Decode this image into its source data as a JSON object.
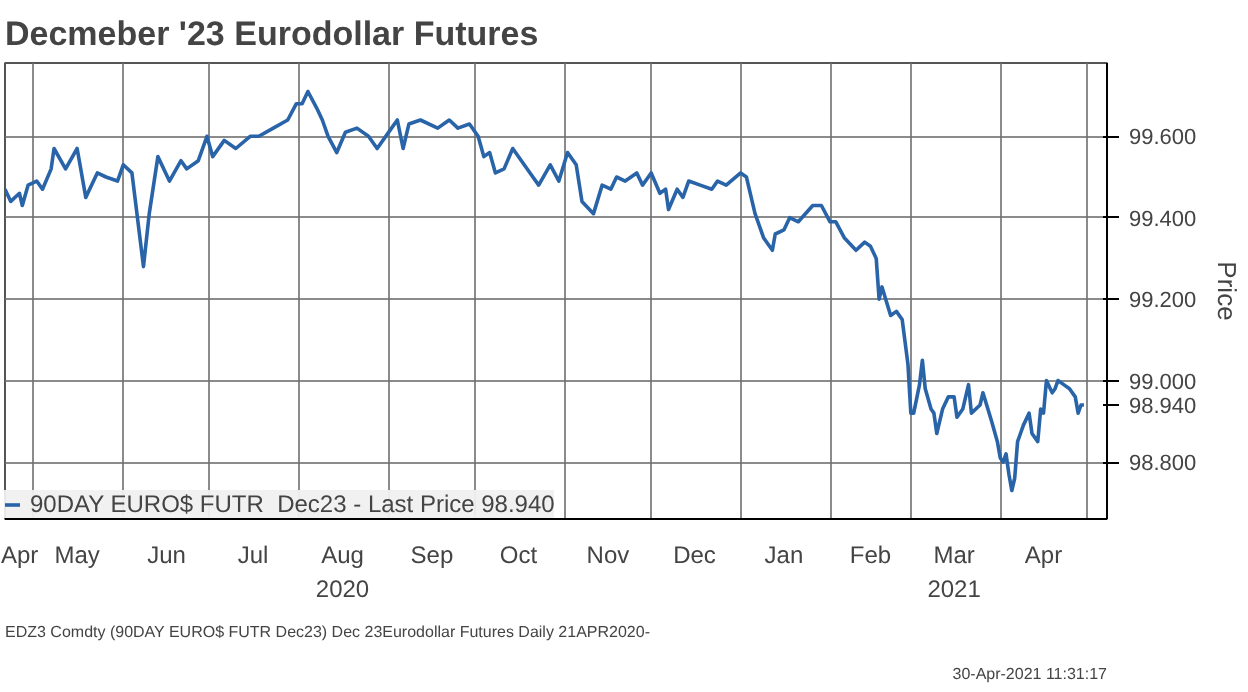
{
  "chart_data": {
    "type": "line",
    "title": "Decmeber '23 Eurodollar Futures",
    "ylabel": "Price",
    "annotations": [
      "EDZ3 Comdty (90DAY EURO$ FUTR  Dec23) Dec 23Eurodollar Futures  Daily 21APR2020-",
      "30-Apr-2021 11:31:17"
    ],
    "xlim": [
      "2020-04-21",
      "2021-05-08"
    ],
    "ylim": [
      98.66,
      99.78
    ],
    "xticks": [
      {
        "value": "2020-04-26",
        "label": "Apr"
      },
      {
        "value": "2020-05-01",
        "label": null
      },
      {
        "value": "2020-05-16",
        "label": "May"
      },
      {
        "value": "2020-06-01",
        "label": null
      },
      {
        "value": "2020-06-16",
        "label": "Jun"
      },
      {
        "value": "2020-07-01",
        "label": null
      },
      {
        "value": "2020-07-16",
        "label": "Jul"
      },
      {
        "value": "2020-08-01",
        "label": null
      },
      {
        "value": "2020-08-16",
        "label": "Aug\n2020"
      },
      {
        "value": "2020-09-01",
        "label": null
      },
      {
        "value": "2020-09-16",
        "label": "Sep"
      },
      {
        "value": "2020-10-01",
        "label": null
      },
      {
        "value": "2020-10-16",
        "label": "Oct"
      },
      {
        "value": "2020-11-01",
        "label": null
      },
      {
        "value": "2020-11-16",
        "label": "Nov"
      },
      {
        "value": "2020-12-01",
        "label": null
      },
      {
        "value": "2020-12-16",
        "label": "Dec"
      },
      {
        "value": "2021-01-01",
        "label": null
      },
      {
        "value": "2021-01-16",
        "label": "Jan"
      },
      {
        "value": "2021-02-01",
        "label": null
      },
      {
        "value": "2021-02-15",
        "label": "Feb"
      },
      {
        "value": "2021-03-01",
        "label": null
      },
      {
        "value": "2021-03-16",
        "label": "Mar\n2021"
      },
      {
        "value": "2021-04-01",
        "label": null
      },
      {
        "value": "2021-04-16",
        "label": "Apr"
      },
      {
        "value": "2021-05-01",
        "label": null
      }
    ],
    "yticks": [
      {
        "value": 98.8,
        "label": "98.800"
      },
      {
        "value": 98.94,
        "label": "98.940"
      },
      {
        "value": 99.0,
        "label": "99.000"
      },
      {
        "value": 99.2,
        "label": "99.200"
      },
      {
        "value": 99.4,
        "label": "99.400"
      },
      {
        "value": 99.6,
        "label": "99.600"
      }
    ],
    "grid": true,
    "legend": "bottom left",
    "marker": "none",
    "line_style": "solid",
    "x": [
      "2020-04-21",
      "2020-04-23",
      "2020-04-26",
      "2020-04-27",
      "2020-04-29",
      "2020-05-02",
      "2020-05-04",
      "2020-05-07",
      "2020-05-08",
      "2020-05-12",
      "2020-05-16",
      "2020-05-19",
      "2020-05-23",
      "2020-05-26",
      "2020-05-30",
      "2020-06-01",
      "2020-06-04",
      "2020-06-08",
      "2020-06-10",
      "2020-06-13",
      "2020-06-17",
      "2020-06-21",
      "2020-06-23",
      "2020-06-27",
      "2020-06-30",
      "2020-07-02",
      "2020-07-06",
      "2020-07-10",
      "2020-07-15",
      "2020-07-18",
      "2020-07-23",
      "2020-07-28",
      "2020-07-31",
      "2020-08-02",
      "2020-08-04",
      "2020-08-07",
      "2020-08-09",
      "2020-08-11",
      "2020-08-14",
      "2020-08-17",
      "2020-08-21",
      "2020-08-25",
      "2020-08-28",
      "2020-09-02",
      "2020-09-04",
      "2020-09-06",
      "2020-09-08",
      "2020-09-12",
      "2020-09-18",
      "2020-09-22",
      "2020-09-25",
      "2020-09-29",
      "2020-10-02",
      "2020-10-04",
      "2020-10-06",
      "2020-10-08",
      "2020-10-11",
      "2020-10-14",
      "2020-10-17",
      "2020-10-20",
      "2020-10-23",
      "2020-10-27",
      "2020-10-30",
      "2020-11-02",
      "2020-11-05",
      "2020-11-07",
      "2020-11-11",
      "2020-11-14",
      "2020-11-17",
      "2020-11-19",
      "2020-11-22",
      "2020-11-26",
      "2020-11-28",
      "2020-12-01",
      "2020-12-04",
      "2020-12-06",
      "2020-12-07",
      "2020-12-10",
      "2020-12-12",
      "2020-12-14",
      "2020-12-18",
      "2020-12-22",
      "2020-12-24",
      "2020-12-27",
      "2021-01-01",
      "2021-01-03",
      "2021-01-06",
      "2021-01-09",
      "2021-01-12",
      "2021-01-13",
      "2021-01-16",
      "2021-01-18",
      "2021-01-21",
      "2021-01-26",
      "2021-01-29",
      "2021-02-01",
      "2021-02-03",
      "2021-02-06",
      "2021-02-10",
      "2021-02-13",
      "2021-02-15",
      "2021-02-17",
      "2021-02-18",
      "2021-02-19",
      "2021-02-22",
      "2021-02-24",
      "2021-02-26",
      "2021-02-28",
      "2021-03-01",
      "2021-03-02",
      "2021-03-04",
      "2021-03-05",
      "2021-03-06",
      "2021-03-08",
      "2021-03-09",
      "2021-03-10",
      "2021-03-12",
      "2021-03-14",
      "2021-03-16",
      "2021-03-17",
      "2021-03-19",
      "2021-03-21",
      "2021-03-22",
      "2021-03-25",
      "2021-03-26",
      "2021-03-29",
      "2021-03-31",
      "2021-04-01",
      "2021-04-02",
      "2021-04-03",
      "2021-04-04",
      "2021-04-05",
      "2021-04-06",
      "2021-04-07",
      "2021-04-09",
      "2021-04-11",
      "2021-04-12",
      "2021-04-14",
      "2021-04-15",
      "2021-04-16",
      "2021-04-17",
      "2021-04-19",
      "2021-04-20",
      "2021-04-21",
      "2021-04-23",
      "2021-04-25",
      "2021-04-27",
      "2021-04-28",
      "2021-04-29",
      "2021-04-30"
    ],
    "series": [
      {
        "name": "90DAY EURO$ FUTR  Dec23 - Last Price 98.940",
        "color": "#2a64a8",
        "values": [
          99.47,
          99.44,
          99.46,
          99.43,
          99.48,
          99.49,
          99.47,
          99.52,
          99.57,
          99.52,
          99.57,
          99.45,
          99.51,
          99.5,
          99.49,
          99.53,
          99.51,
          99.28,
          99.41,
          99.55,
          99.49,
          99.54,
          99.52,
          99.54,
          99.6,
          99.55,
          99.59,
          99.57,
          99.6,
          99.6,
          99.62,
          99.64,
          99.68,
          99.68,
          99.71,
          99.67,
          99.64,
          99.6,
          99.56,
          99.61,
          99.62,
          99.6,
          99.57,
          99.62,
          99.64,
          99.57,
          99.63,
          99.64,
          99.62,
          99.64,
          99.62,
          99.63,
          99.6,
          99.55,
          99.56,
          99.51,
          99.52,
          99.57,
          99.54,
          99.51,
          99.48,
          99.53,
          99.49,
          99.56,
          99.53,
          99.44,
          99.41,
          99.48,
          99.47,
          99.5,
          99.49,
          99.51,
          99.48,
          99.51,
          99.46,
          99.47,
          99.42,
          99.47,
          99.45,
          99.49,
          99.48,
          99.47,
          99.49,
          99.48,
          99.51,
          99.5,
          99.41,
          99.35,
          99.32,
          99.36,
          99.37,
          99.4,
          99.39,
          99.43,
          99.43,
          99.39,
          99.39,
          99.35,
          99.32,
          99.34,
          99.33,
          99.3,
          99.2,
          99.23,
          99.16,
          99.17,
          99.15,
          99.04,
          98.92,
          98.92,
          98.99,
          99.05,
          98.98,
          98.93,
          98.92,
          98.87,
          98.93,
          98.96,
          98.96,
          98.91,
          98.93,
          98.99,
          98.92,
          98.94,
          98.97,
          98.9,
          98.85,
          98.81,
          98.8,
          98.82,
          98.77,
          98.73,
          98.76,
          98.85,
          98.89,
          98.92,
          98.87,
          98.85,
          98.93,
          98.92,
          99.0,
          98.97,
          98.98,
          99.0,
          98.99,
          98.98,
          98.96,
          98.92,
          98.94,
          98.94
        ]
      }
    ]
  }
}
